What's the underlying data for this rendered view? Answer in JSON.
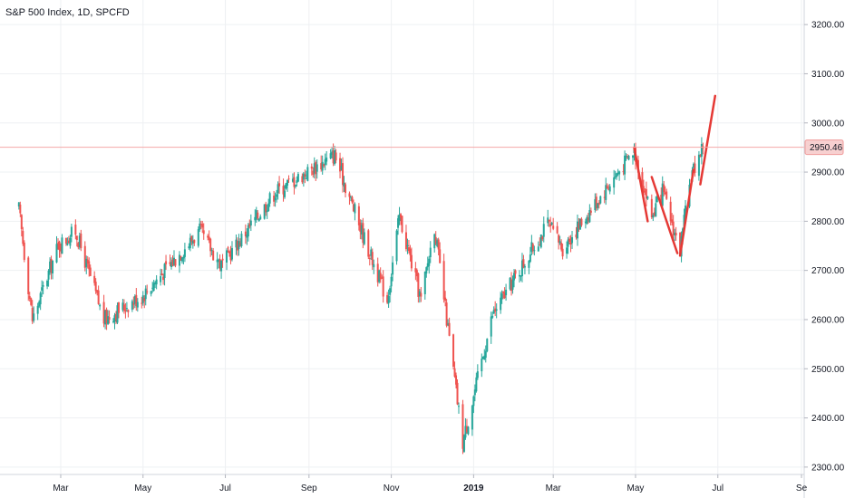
{
  "chart_title": "S&P 500 Index, 1D, SPCFD",
  "chart_data": {
    "type": "candlestick",
    "title": "S&P 500 Index, 1D, SPCFD",
    "xlabel": "",
    "ylabel": "",
    "ylim": [
      2285,
      3250
    ],
    "grid": true,
    "y_ticks": [
      "3200.00",
      "3100.00",
      "3000.00",
      "2900.00",
      "2800.00",
      "2700.00",
      "2600.00",
      "2500.00",
      "2400.00",
      "2300.00"
    ],
    "x_ticks": [
      "Mar",
      "May",
      "Jul",
      "Sep",
      "Nov",
      "2019",
      "Mar",
      "May",
      "Jul",
      "Se"
    ],
    "last_price": "2950.46",
    "last_price_value": 2950.46,
    "colors": {
      "up": "#26a69a",
      "down": "#ef5350",
      "line": "#e53935",
      "grid": "#eef0f3"
    },
    "series": [
      {
        "x": "2018-01-29",
        "y": 2825
      },
      {
        "x": "2018-02-08",
        "y": 2600
      },
      {
        "x": "2018-02-27",
        "y": 2750
      },
      {
        "x": "2018-03-12",
        "y": 2780
      },
      {
        "x": "2018-04-02",
        "y": 2600
      },
      {
        "x": "2018-05-01",
        "y": 2650
      },
      {
        "x": "2018-06-12",
        "y": 2780
      },
      {
        "x": "2018-06-28",
        "y": 2710
      },
      {
        "x": "2018-08-07",
        "y": 2860
      },
      {
        "x": "2018-09-20",
        "y": 2935
      },
      {
        "x": "2018-10-10",
        "y": 2780
      },
      {
        "x": "2018-10-29",
        "y": 2640
      },
      {
        "x": "2018-11-07",
        "y": 2810
      },
      {
        "x": "2018-11-23",
        "y": 2640
      },
      {
        "x": "2018-12-03",
        "y": 2790
      },
      {
        "x": "2018-12-24",
        "y": 2350
      },
      {
        "x": "2019-01-15",
        "y": 2610
      },
      {
        "x": "2019-02-25",
        "y": 2795
      },
      {
        "x": "2019-03-08",
        "y": 2745
      },
      {
        "x": "2019-04-30",
        "y": 2945
      },
      {
        "x": "2019-05-13",
        "y": 2810
      },
      {
        "x": "2019-05-21",
        "y": 2860
      },
      {
        "x": "2019-06-03",
        "y": 2740
      },
      {
        "x": "2019-06-11",
        "y": 2890
      },
      {
        "x": "2019-06-20",
        "y": 2955
      }
    ],
    "annotations": [
      {
        "type": "line",
        "points": [
          {
            "x": "2019-04-30",
            "y": 2950
          },
          {
            "x": "2019-05-10",
            "y": 2800
          }
        ]
      },
      {
        "type": "line",
        "points": [
          {
            "x": "2019-05-13",
            "y": 2890
          },
          {
            "x": "2019-06-01",
            "y": 2735
          }
        ]
      },
      {
        "type": "line",
        "points": [
          {
            "x": "2019-06-03",
            "y": 2730
          },
          {
            "x": "2019-06-13",
            "y": 2905
          }
        ]
      },
      {
        "type": "line",
        "points": [
          {
            "x": "2019-06-18",
            "y": 2875
          },
          {
            "x": "2019-06-29",
            "y": 3055
          }
        ]
      }
    ]
  }
}
